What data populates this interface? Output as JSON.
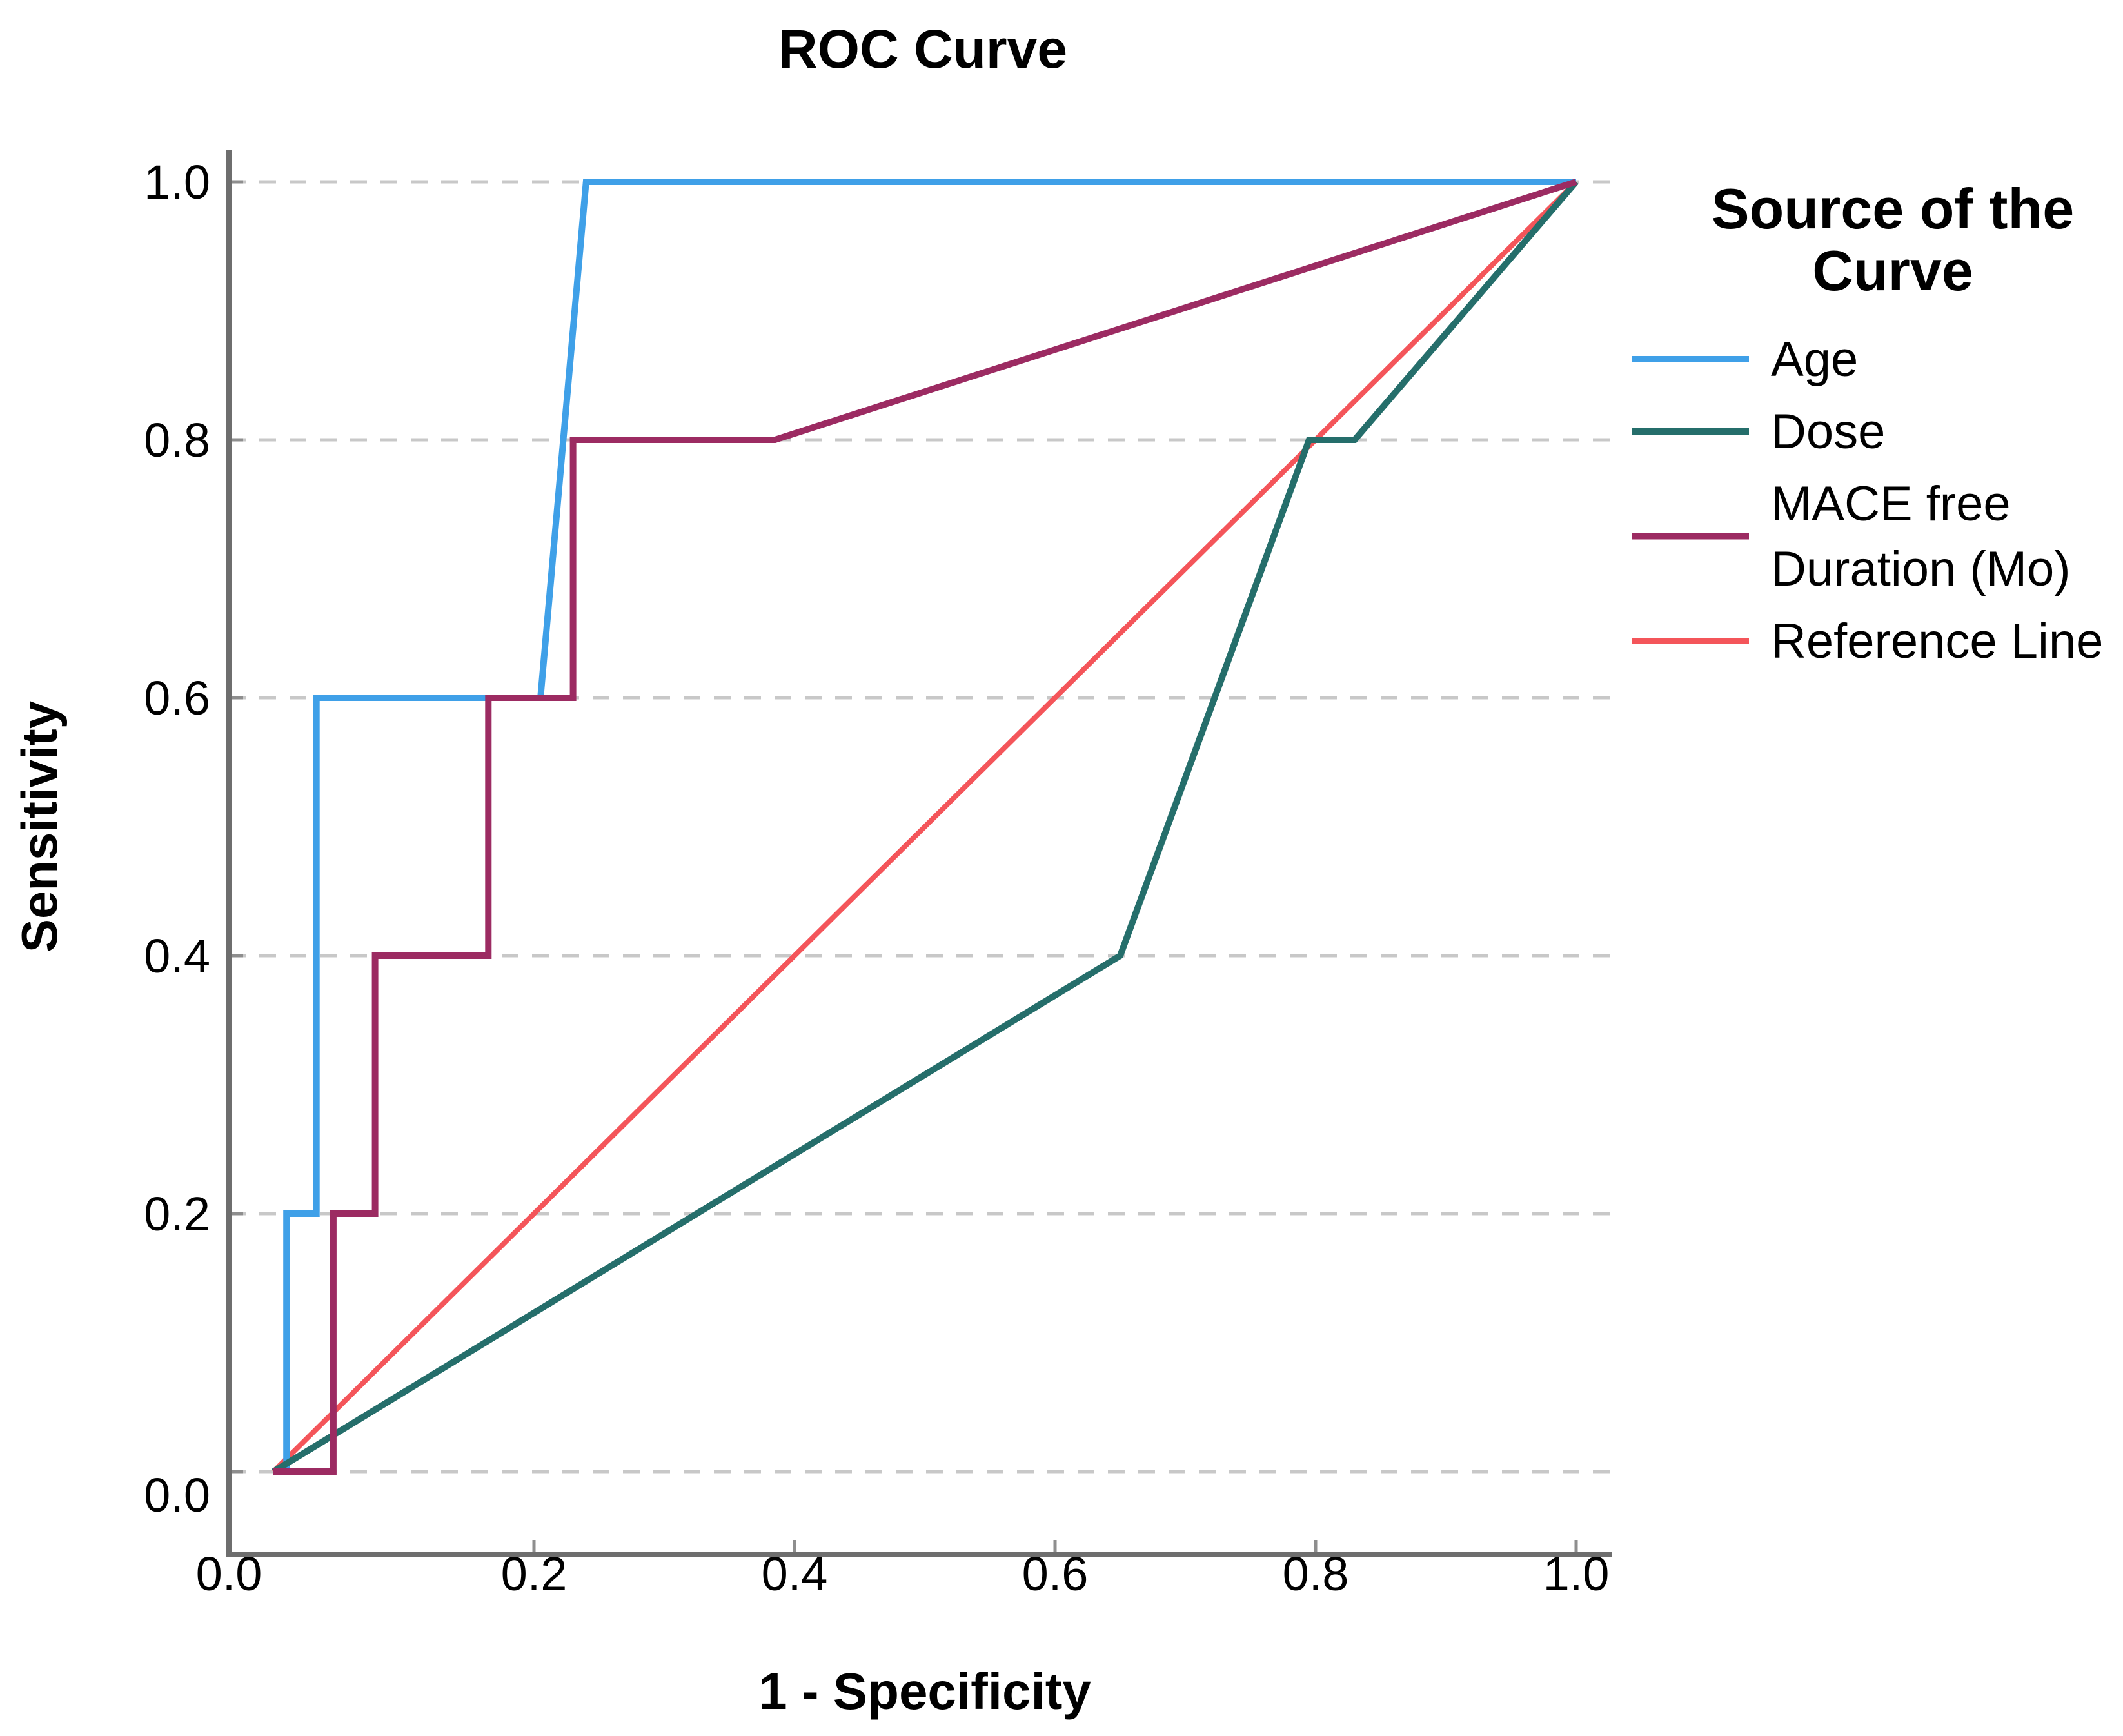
{
  "title": "ROC Curve",
  "x_axis": {
    "title": "1 - Specificity",
    "tick_labels": [
      "0.0",
      "0.2",
      "0.4",
      "0.6",
      "0.8",
      "1.0"
    ]
  },
  "y_axis": {
    "title": "Sensitivity",
    "tick_labels": [
      "0.0",
      "0.2",
      "0.4",
      "0.6",
      "0.8",
      "1.0"
    ]
  },
  "legend": {
    "title_lines": [
      "Source of the",
      "Curve"
    ],
    "items": [
      {
        "label_lines": [
          "Age"
        ]
      },
      {
        "label_lines": [
          "Dose"
        ]
      },
      {
        "label_lines": [
          "MACE free",
          "Duration (Mo)"
        ]
      },
      {
        "label_lines": [
          "Reference Line"
        ]
      }
    ]
  },
  "style": {
    "background": "#ffffff",
    "axis_color": "#6E6E6E",
    "gridline_color": "#C8C8C8",
    "tick_color": "#8E8E8E",
    "text_color": "#000000"
  },
  "chart_data": {
    "type": "line",
    "title": "ROC Curve",
    "xlabel": "1 - Specificity",
    "ylabel": "Sensitivity",
    "xlim": [
      0,
      1
    ],
    "ylim": [
      0,
      1
    ],
    "x_ticks": [
      0.0,
      0.2,
      0.4,
      0.6,
      0.8,
      1.0
    ],
    "y_ticks": [
      0.0,
      0.2,
      0.4,
      0.6,
      0.8,
      1.0
    ],
    "grid": "horizontal dashed gridlines only",
    "legend_position": "right",
    "series": [
      {
        "name": "Age",
        "color": "#3FA0E8",
        "points": [
          [
            0,
            0
          ],
          [
            0.01,
            0
          ],
          [
            0.01,
            0.2
          ],
          [
            0.033,
            0.2
          ],
          [
            0.033,
            0.6
          ],
          [
            0.205,
            0.6
          ],
          [
            0.24,
            1.0
          ],
          [
            1.0,
            1.0
          ]
        ]
      },
      {
        "name": "Dose",
        "color": "#256E6B",
        "points": [
          [
            0,
            0
          ],
          [
            0.65,
            0.4
          ],
          [
            0.795,
            0.8
          ],
          [
            0.83,
            0.8
          ],
          [
            1.0,
            1.0
          ]
        ]
      },
      {
        "name": "MACE free Duration (Mo)",
        "color": "#9C2B62",
        "points": [
          [
            0,
            0
          ],
          [
            0.046,
            0
          ],
          [
            0.046,
            0.2
          ],
          [
            0.078,
            0.2
          ],
          [
            0.078,
            0.4
          ],
          [
            0.165,
            0.4
          ],
          [
            0.165,
            0.6
          ],
          [
            0.23,
            0.6
          ],
          [
            0.23,
            0.8
          ],
          [
            0.385,
            0.8
          ],
          [
            1.0,
            1.0
          ]
        ]
      },
      {
        "name": "Reference Line",
        "color": "#F4555A",
        "points": [
          [
            0,
            0
          ],
          [
            1.0,
            1.0
          ]
        ]
      }
    ]
  }
}
